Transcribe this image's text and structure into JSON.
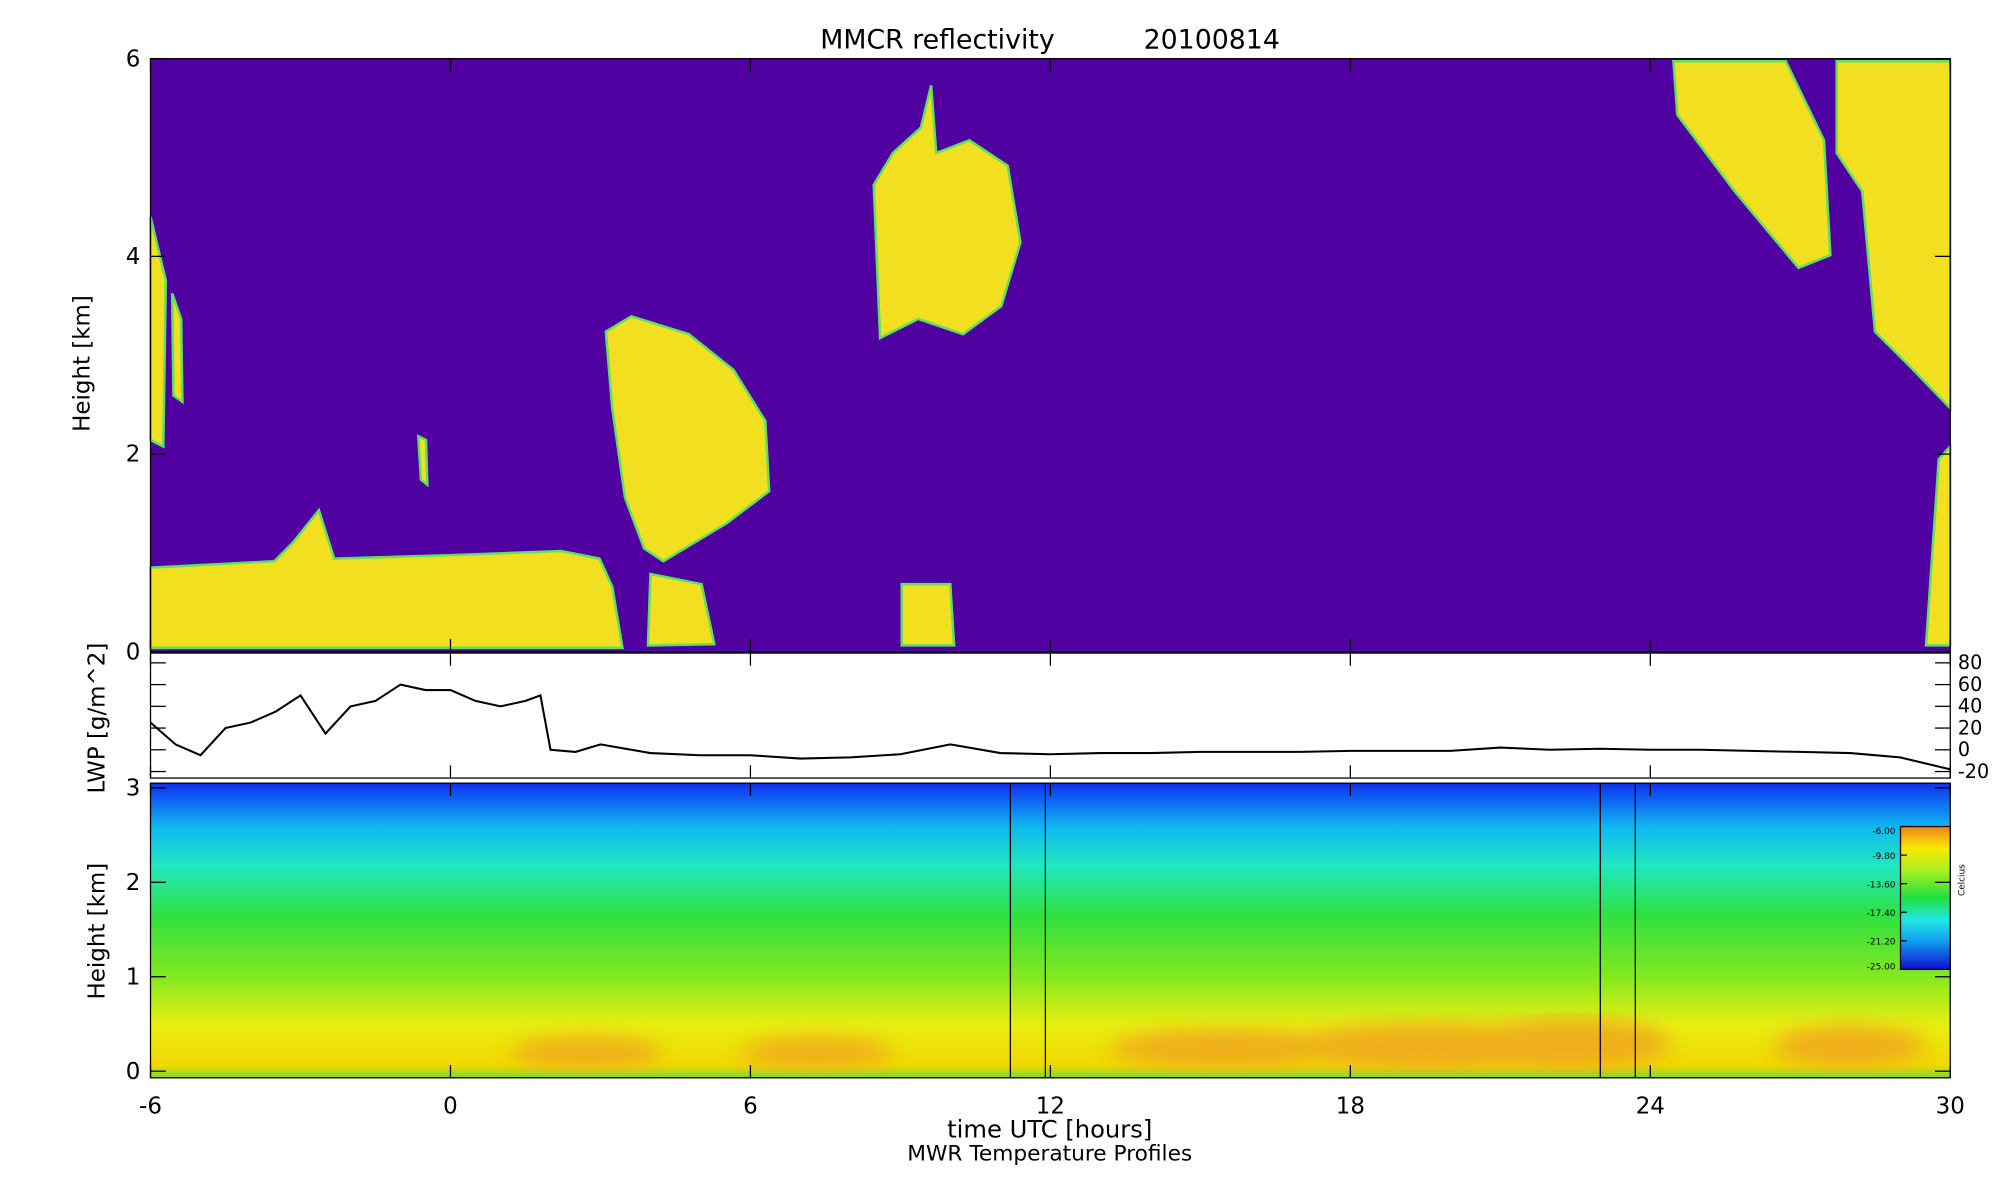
{
  "chart_data": [
    {
      "type": "heatmap",
      "title": "MMCR reflectivity",
      "date": "20100814",
      "ylabel": "Height [km]",
      "xlim": [
        -6,
        30
      ],
      "xticks": [
        -6,
        0,
        6,
        12,
        18,
        24,
        30
      ],
      "ylim": [
        0,
        6
      ],
      "yticks": [
        0,
        2,
        4,
        6
      ]
    },
    {
      "type": "line",
      "ylabel": "LWP [g/m^2]",
      "color": "#000000",
      "x": [
        -6,
        -5.5,
        -5,
        -4.5,
        -4,
        -3.5,
        -3,
        -2.5,
        -2,
        -1.5,
        -1,
        -0.5,
        0,
        0.5,
        1,
        1.5,
        1.8,
        2,
        2.5,
        3,
        4,
        5,
        6,
        7,
        8,
        9,
        10,
        11,
        12,
        13,
        14,
        15,
        16,
        17,
        18,
        19,
        20,
        21,
        22,
        23,
        24,
        25,
        26,
        27,
        28,
        29,
        30
      ],
      "values": [
        25,
        5,
        -5,
        20,
        25,
        35,
        50,
        15,
        40,
        45,
        60,
        55,
        55,
        45,
        40,
        45,
        50,
        0,
        -2,
        5,
        -3,
        -5,
        -5,
        -8,
        -7,
        -4,
        5,
        -3,
        -4,
        -3,
        -3,
        -2,
        -2,
        -2,
        -1,
        -1,
        -1,
        2,
        0,
        1,
        0,
        0,
        -1,
        -2,
        -3,
        -7,
        -18
      ],
      "xlim": [
        -6,
        30
      ],
      "xticks": [
        -6,
        0,
        6,
        12,
        18,
        24,
        30
      ],
      "ylim": [
        -26,
        89
      ],
      "yticks": [
        -20,
        0,
        20,
        40,
        60,
        80
      ]
    },
    {
      "type": "contour",
      "ylabel": "Height [km]",
      "xlabel": "time UTC [hours]",
      "caption": "MWR Temperature Profiles",
      "xlim": [
        -6,
        30
      ],
      "xticks": [
        -6,
        0,
        6,
        12,
        18,
        24,
        30
      ],
      "ylim": [
        -0.07,
        3.05
      ],
      "yticks": [
        0,
        1,
        2,
        3
      ],
      "vlines": [
        11.2,
        11.9,
        23.0,
        23.7
      ],
      "colorbar": {
        "label": "Celcius",
        "lim": [
          -25,
          -6
        ],
        "ticks": [
          {
            "value": -6,
            "label": "-6.00"
          },
          {
            "value": -9.8,
            "label": "-9.80"
          },
          {
            "value": -13.6,
            "label": "-13.60"
          },
          {
            "value": -17.4,
            "label": "-17.40"
          },
          {
            "value": -21.2,
            "label": "-21.20"
          },
          {
            "value": -25,
            "label": "-25.00"
          }
        ]
      }
    }
  ]
}
